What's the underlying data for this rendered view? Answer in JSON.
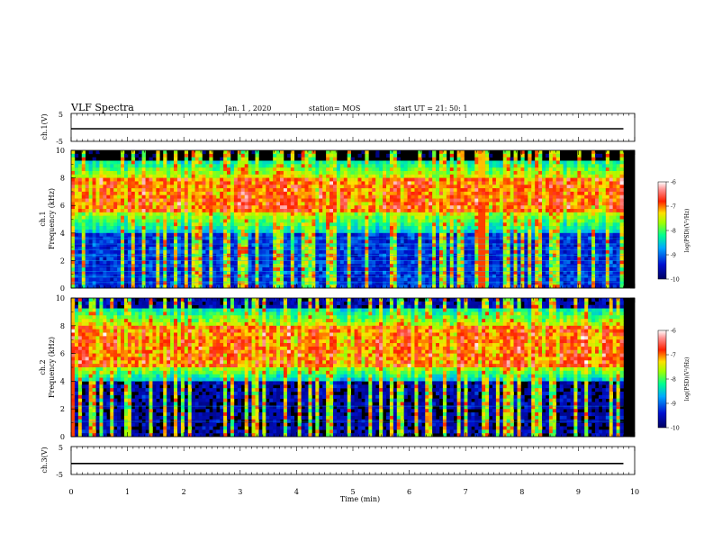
{
  "header": {
    "title": "VLF Spectra",
    "date": "Jan. 1 , 2020",
    "station": "station= MOS",
    "start": "start UT = 21: 50: 1"
  },
  "chart_data": [
    {
      "type": "line",
      "panel": "ch1-waveform",
      "ylabel": "ch.1(V)",
      "ylim": [
        -5,
        5
      ],
      "yticks": [
        "5",
        "-5"
      ],
      "xlim": [
        0,
        10
      ],
      "series": [
        {
          "x": [
            0,
            9.8
          ],
          "y": [
            0.0,
            0.0
          ]
        }
      ]
    },
    {
      "type": "heatmap",
      "panel": "ch1-spectrogram",
      "ylabel": "ch.1\nFrequency (kHz)",
      "ylim": [
        0,
        10
      ],
      "yticks": [
        "0",
        "2",
        "4",
        "6",
        "8",
        "10"
      ],
      "xlim": [
        0,
        10
      ],
      "data_xmax": 9.8,
      "colorbar": {
        "label": "log(PSD)(V²/Hz)",
        "ticks": [
          "-6",
          "-7",
          "-8",
          "-9",
          "-10"
        ],
        "range": [
          -10,
          -6
        ]
      },
      "features": {
        "strong_band_kHz": [
          5.5,
          8.0
        ],
        "noise_floor_kHz": [
          0,
          4
        ],
        "broadband_burst_min": 7.25
      }
    },
    {
      "type": "heatmap",
      "panel": "ch2-spectrogram",
      "ylabel": "ch.2\nFrequency (kHz)",
      "ylim": [
        0,
        10
      ],
      "yticks": [
        "0",
        "2",
        "4",
        "6",
        "8",
        "10"
      ],
      "xlim": [
        0,
        10
      ],
      "data_xmax": 9.8,
      "colorbar": {
        "label": "log(PSD)(V²/Hz)",
        "ticks": [
          "-6",
          "-7",
          "-8",
          "-9",
          "-10"
        ],
        "range": [
          -10,
          -6
        ]
      },
      "features": {
        "strong_band_kHz": [
          5.0,
          8.0
        ],
        "noise_floor_kHz": [
          0,
          4
        ]
      }
    },
    {
      "type": "line",
      "panel": "ch3-waveform",
      "ylabel": "ch.3(V)",
      "ylim": [
        -5,
        5
      ],
      "yticks": [
        "5",
        "-5"
      ],
      "xlim": [
        0,
        10
      ],
      "series": [
        {
          "x": [
            0,
            9.8
          ],
          "y": [
            -0.6,
            -0.6
          ]
        }
      ]
    }
  ],
  "xaxis": {
    "label": "Time (min)",
    "ticks": [
      "0",
      "1",
      "2",
      "3",
      "4",
      "5",
      "6",
      "7",
      "8",
      "9",
      "10"
    ]
  },
  "colors": {
    "colormap": [
      "#00008b",
      "#0040ff",
      "#00c8ff",
      "#00ff80",
      "#ffff00",
      "#ff8000",
      "#ff0000",
      "#ffffff"
    ],
    "background": "#000000",
    "line": "#000000"
  }
}
